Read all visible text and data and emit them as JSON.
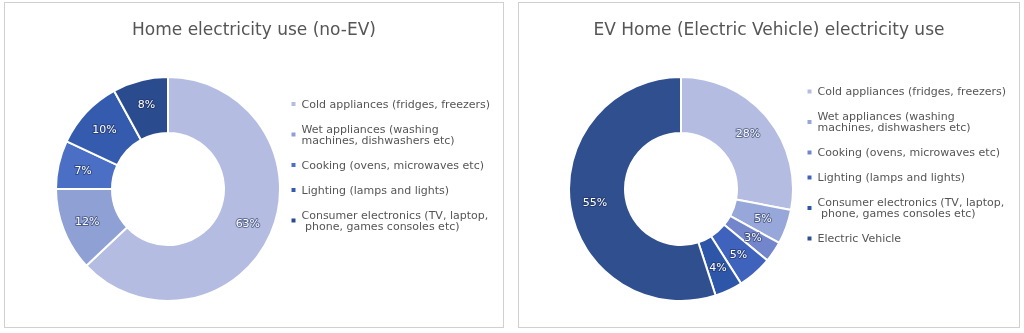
{
  "chart_data": [
    {
      "type": "donut",
      "title": "Home electricity use (no-EV)",
      "categories": [
        "Cold appliances (fridges, freezers)",
        "Wet appliances (washing machines, dishwashers etc)",
        "Cooking (ovens, microwaves etc)",
        "Lighting (lamps and lights)",
        "Consumer electronics (TV, laptop, phone, games consoles etc)"
      ],
      "values": [
        63,
        12,
        7,
        10,
        8
      ],
      "value_labels": [
        "63%",
        "12%",
        "7%",
        "10%",
        "8%"
      ],
      "colors": [
        "#b4bde1",
        "#8fa0d5",
        "#4a6fc4",
        "#355bae",
        "#2a4b8d"
      ],
      "legend": "right"
    },
    {
      "type": "donut",
      "title": "EV Home (Electric Vehicle) electricity use",
      "categories": [
        "Cold appliances (fridges, freezers)",
        "Wet appliances (washing machines, dishwashers etc)",
        "Cooking (ovens, microwaves etc)",
        "Lighting (lamps and lights)",
        "Consumer electronics (TV, laptop, phone, games consoles etc)",
        "Electric Vehicle"
      ],
      "values": [
        28,
        5,
        3,
        5,
        4,
        55
      ],
      "value_labels": [
        "28%",
        "5%",
        "3%",
        "5%",
        "4%",
        "55%"
      ],
      "colors": [
        "#b4bde1",
        "#98a7d9",
        "#7386cb",
        "#3f63bd",
        "#2e56a8",
        "#2f4f8f"
      ],
      "legend": "right"
    }
  ]
}
